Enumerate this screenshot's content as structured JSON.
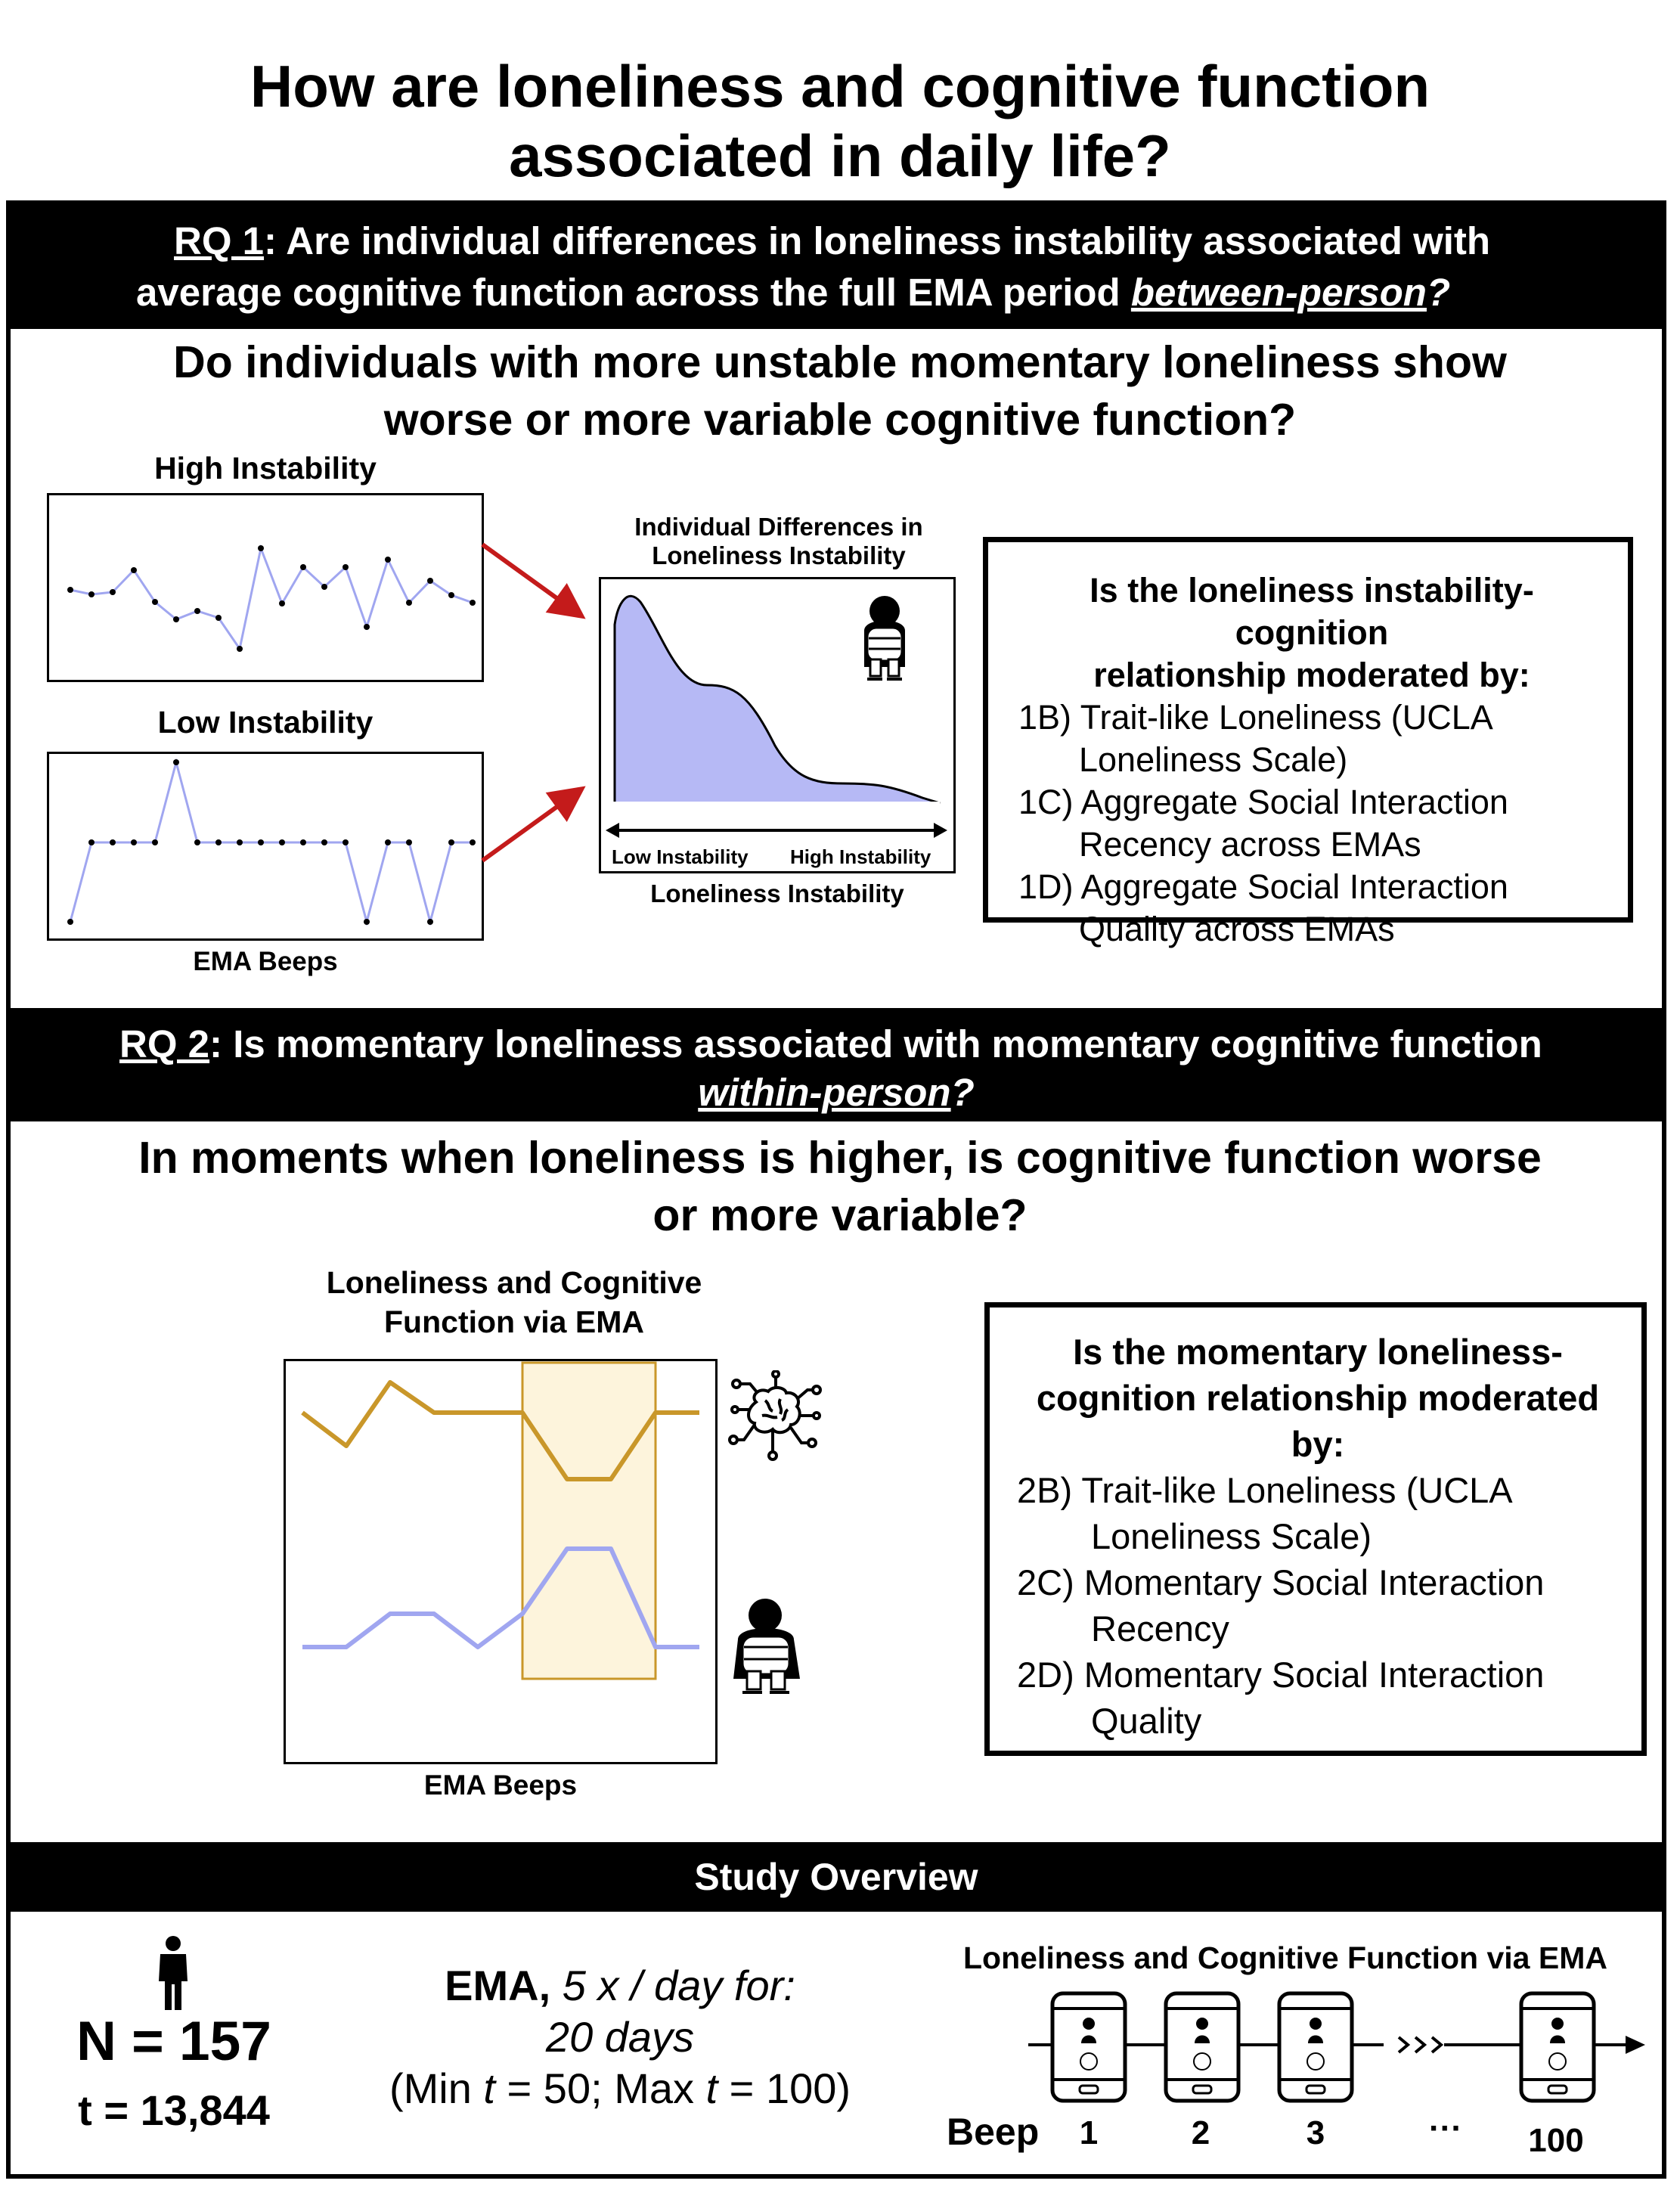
{
  "title": {
    "line1": "How are loneliness and cognitive function",
    "line2": "associated in daily life?"
  },
  "rq1": {
    "tag": "RQ 1",
    "line1_rest": ": Are individual differences in loneliness instability associated with",
    "line2_start": "average cognitive function across the full EMA period ",
    "line2_em": "between-person",
    "line2_end": "?",
    "question_line1": "Do individuals with more unstable momentary loneliness show",
    "question_line2": "worse or more variable cognitive function?",
    "high_label": "High Instability",
    "low_label": "Low Instability",
    "beeps_label": "EMA Beeps",
    "dist_title_line1": "Individual Differences in",
    "dist_title_line2": "Loneliness Instability",
    "dist_low": "Low Instability",
    "dist_high": "High Instability",
    "dist_xlabel": "Loneliness Instability",
    "moderator": {
      "head_line1": "Is the loneliness instability-cognition",
      "head_line2": "relationship moderated by:",
      "items": [
        {
          "line1": "1B) Trait-like Loneliness (UCLA",
          "line2": "Loneliness Scale)"
        },
        {
          "line1": "1C) Aggregate Social Interaction",
          "line2": "Recency across EMAs"
        },
        {
          "line1": "1D) Aggregate Social Interaction",
          "line2": "Quality across EMAs"
        }
      ]
    }
  },
  "rq2": {
    "tag": "RQ 2",
    "line1_rest": ": Is momentary loneliness associated with momentary cognitive function",
    "line2_em": "within-person",
    "line2_end": "?",
    "question_line1": "In moments when loneliness is higher, is cognitive function worse",
    "question_line2": "or more variable?",
    "chart_title_line1": "Loneliness and Cognitive",
    "chart_title_line2": "Function via EMA",
    "beeps_label": "EMA Beeps",
    "moderator": {
      "head_line1": "Is the momentary loneliness-",
      "head_line2": "cognition relationship moderated",
      "head_line3": "by:",
      "items": [
        {
          "line1": "2B) Trait-like Loneliness (UCLA",
          "line2": "Loneliness Scale)"
        },
        {
          "line1": "2C) Momentary Social Interaction",
          "line2": "Recency"
        },
        {
          "line1": "2D) Momentary Social Interaction",
          "line2": "Quality"
        }
      ]
    }
  },
  "overview": {
    "header": "Study Overview",
    "n": "N = 157",
    "t": "t = 13,844",
    "ema_bold": "EMA,",
    "ema_rest": " 5 x / day for:",
    "days": "20 days",
    "minmax_1": "(Min ",
    "minmax_t1": "t",
    "minmax_2": " = 50; Max ",
    "minmax_t2": "t",
    "minmax_3": " = 100)",
    "phones_title": "Loneliness and Cognitive Function via EMA",
    "beep_label": "Beep",
    "beeps": [
      "1",
      "2",
      "3",
      "···",
      "100"
    ]
  },
  "colors": {
    "loneliness_line": "#a0a6f0",
    "cognition_line": "#c9972a",
    "highlight_fill": "#fdf4dc",
    "arrow": "#c41b1b",
    "density_fill": "#b6b9f5"
  }
}
